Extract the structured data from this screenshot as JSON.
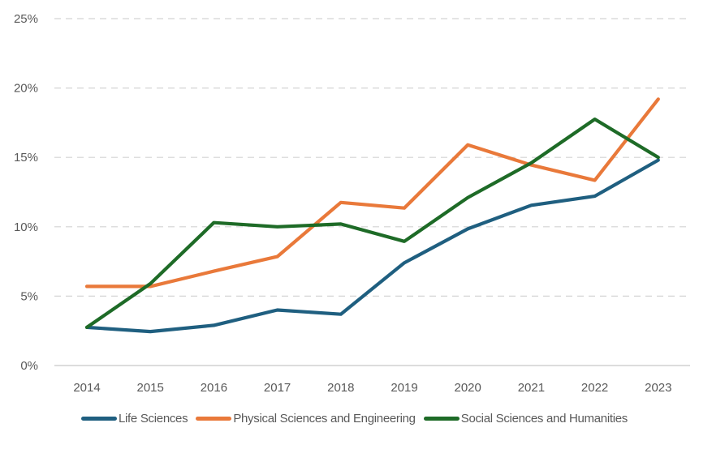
{
  "chart_data": {
    "type": "line",
    "title": "",
    "xlabel": "",
    "ylabel": "",
    "x": [
      "2014",
      "2015",
      "2016",
      "2017",
      "2018",
      "2019",
      "2020",
      "2021",
      "2022",
      "2023"
    ],
    "ylim": [
      0,
      25
    ],
    "yticks": [
      0,
      5,
      10,
      15,
      20,
      25
    ],
    "ytick_labels": [
      "0%",
      "5%",
      "10%",
      "15%",
      "20%",
      "25%"
    ],
    "y_unit": "%",
    "grid": "horizontal-dashed",
    "legend_position": "bottom",
    "series": [
      {
        "name": "Life Sciences",
        "color": "#1F5F80",
        "values": [
          2.75,
          2.45,
          2.9,
          4.0,
          3.7,
          7.4,
          9.85,
          11.55,
          12.2,
          14.8
        ]
      },
      {
        "name": "Physical Sciences and Engineering",
        "color": "#E9793A",
        "values": [
          5.7,
          5.7,
          6.8,
          7.85,
          11.75,
          11.35,
          15.9,
          14.45,
          13.35,
          19.2
        ]
      },
      {
        "name": "Social Sciences and Humanities",
        "color": "#1E6B27",
        "values": [
          2.75,
          5.9,
          10.3,
          10.0,
          10.2,
          8.95,
          12.1,
          14.6,
          17.75,
          15.0
        ]
      }
    ]
  }
}
